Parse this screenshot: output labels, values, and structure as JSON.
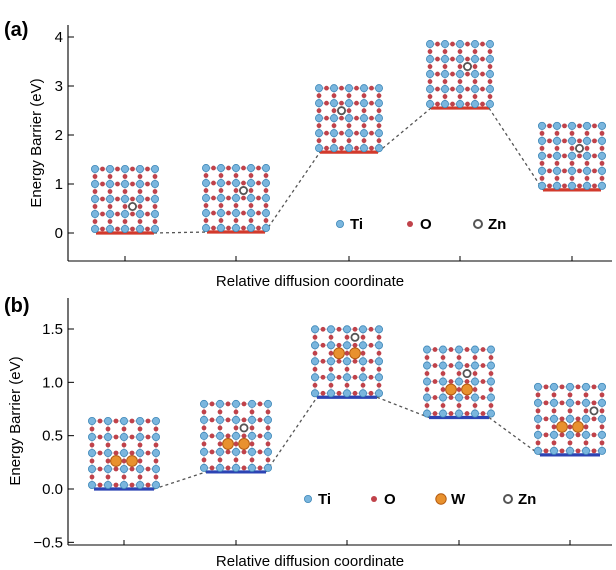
{
  "colors": {
    "panel_a_level": "#d23a2c",
    "panel_b_level": "#2c44b4",
    "ti": "#7ab6de",
    "ti_edge": "#3f88b8",
    "o": "#c0424a",
    "w": "#e8912e",
    "zn": "#8a8a8a"
  },
  "chart_data": [
    {
      "type": "line",
      "panel_label": "(a)",
      "title": "",
      "xlabel": "Relative diffusion coordinate",
      "ylabel": "Energy Barrier (eV)",
      "ylim": [
        -0.55,
        4.3
      ],
      "yticks": [
        0,
        1,
        2,
        3,
        4
      ],
      "ytick_labels": [
        "0",
        "1",
        "2",
        "3",
        "4"
      ],
      "x": [
        1,
        2,
        3,
        4,
        5
      ],
      "series": [
        {
          "values": [
            0.0,
            0.02,
            1.65,
            2.55,
            0.88
          ]
        }
      ],
      "legend": {
        "placement": "lower-right",
        "items": [
          {
            "label": "Ti",
            "icon": "ti-atom-icon"
          },
          {
            "label": "O",
            "icon": "o-atom-icon"
          },
          {
            "label": "Zn",
            "icon": "zn-atom-icon"
          }
        ]
      },
      "grid": false
    },
    {
      "type": "line",
      "panel_label": "(b)",
      "title": "",
      "xlabel": "Relative diffusion coordinate",
      "ylabel": "Energy Barrier (eV)",
      "ylim": [
        -0.52,
        1.82
      ],
      "yticks": [
        -0.5,
        0.0,
        0.5,
        1.0,
        1.5
      ],
      "ytick_labels": [
        "−0.5",
        "0.0",
        "0.5",
        "1.0",
        "1.5"
      ],
      "x": [
        1,
        2,
        3,
        4,
        5
      ],
      "series": [
        {
          "values": [
            0.0,
            0.16,
            0.86,
            0.67,
            0.32
          ]
        }
      ],
      "legend": {
        "placement": "lower-right",
        "items": [
          {
            "label": "Ti",
            "icon": "ti-atom-icon"
          },
          {
            "label": "O",
            "icon": "o-atom-icon"
          },
          {
            "label": "W",
            "icon": "w-atom-icon"
          },
          {
            "label": "Zn",
            "icon": "zn-atom-icon"
          }
        ]
      },
      "grid": false
    }
  ]
}
